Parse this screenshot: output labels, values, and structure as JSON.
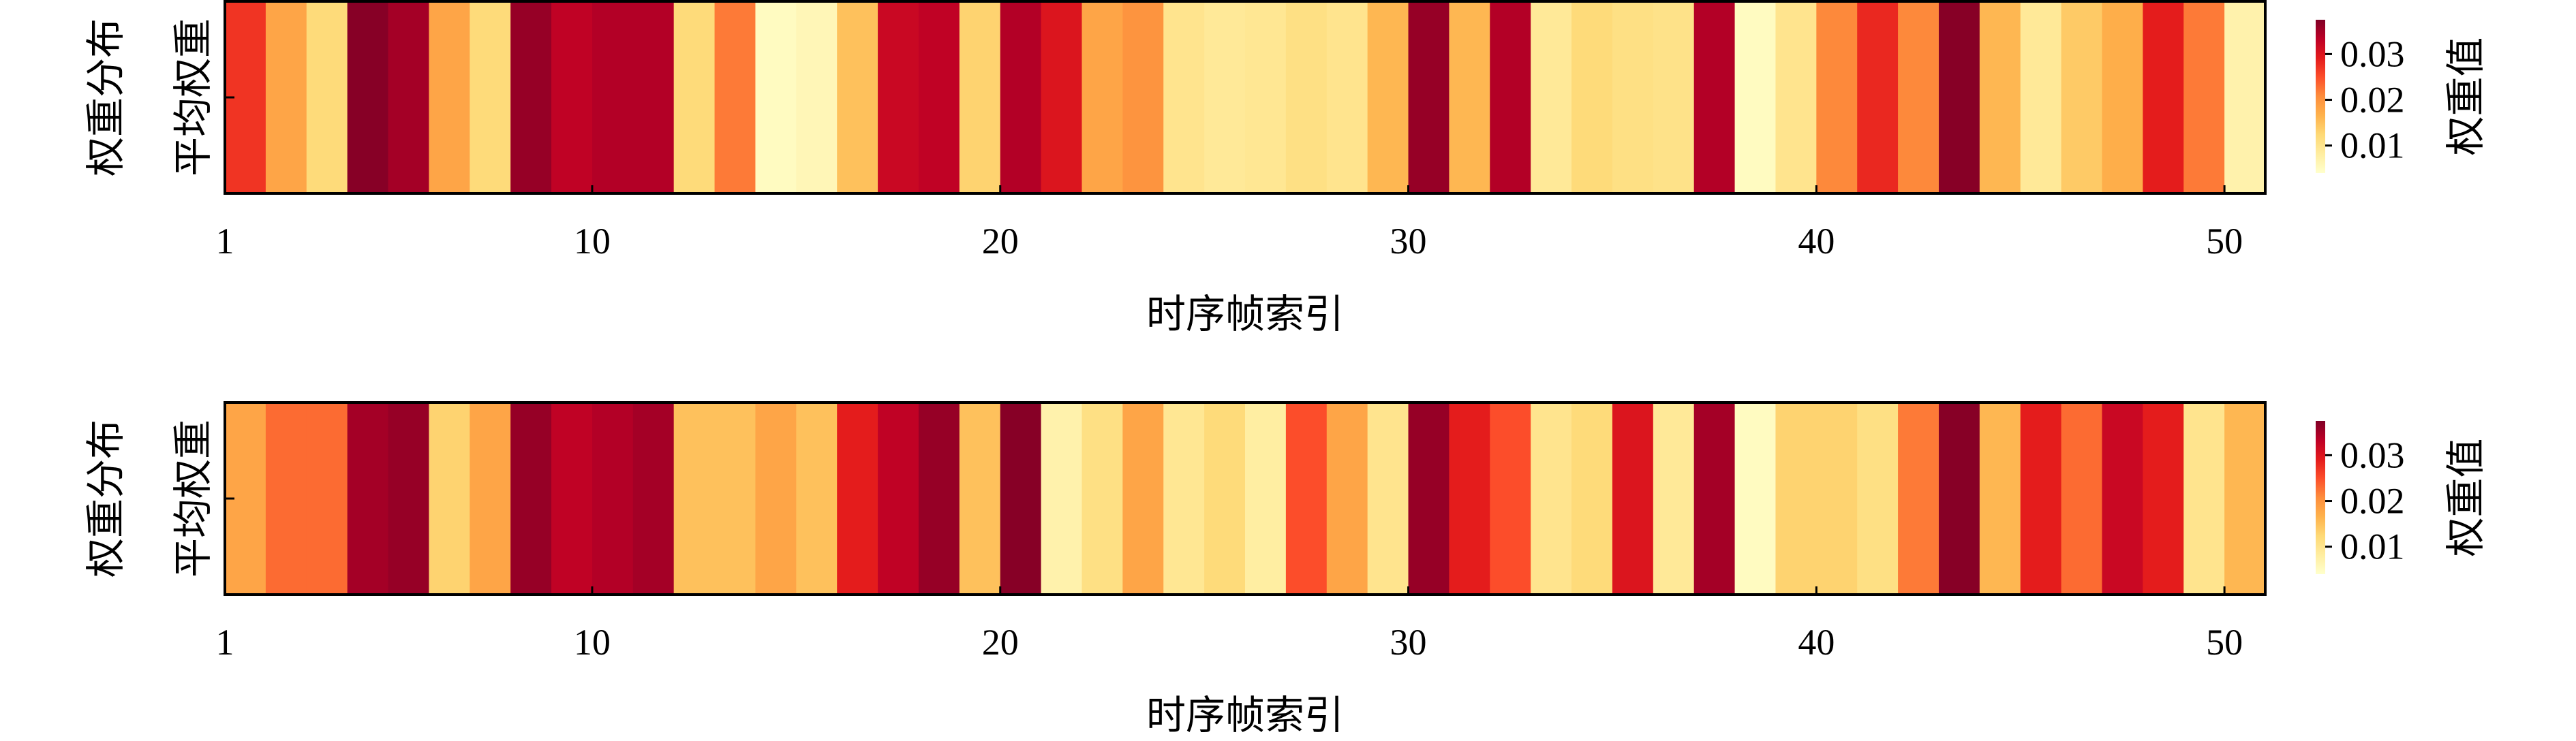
{
  "chart_data": [
    {
      "type": "heatmap",
      "x_label": "时序帧索引",
      "y_label": "权重分布",
      "y_categories": [
        "平均权重"
      ],
      "x": [
        1,
        2,
        3,
        4,
        5,
        6,
        7,
        8,
        9,
        10,
        11,
        12,
        13,
        14,
        15,
        16,
        17,
        18,
        19,
        20,
        21,
        22,
        23,
        24,
        25,
        26,
        27,
        28,
        29,
        30,
        31,
        32,
        33,
        34,
        35,
        36,
        37,
        38,
        39,
        40,
        41,
        42,
        43,
        44,
        45,
        46,
        47,
        48,
        49,
        50
      ],
      "values": [
        0.027,
        0.018,
        0.012,
        0.037,
        0.035,
        0.018,
        0.012,
        0.036,
        0.033,
        0.034,
        0.034,
        0.012,
        0.022,
        0.005,
        0.006,
        0.015,
        0.032,
        0.033,
        0.013,
        0.034,
        0.03,
        0.018,
        0.02,
        0.01,
        0.009,
        0.0095,
        0.011,
        0.01,
        0.016,
        0.036,
        0.016,
        0.034,
        0.009,
        0.012,
        0.011,
        0.0105,
        0.034,
        0.005,
        0.01,
        0.021,
        0.028,
        0.021,
        0.037,
        0.016,
        0.009,
        0.014,
        0.017,
        0.029,
        0.022,
        0.007
      ],
      "xlim": [
        1,
        51
      ],
      "xticks": [
        1,
        10,
        20,
        30,
        40,
        50
      ],
      "colorscale": [
        "#ffffcc",
        "#ffeda0",
        "#fed976",
        "#feb24c",
        "#fd8d3c",
        "#fc4e2a",
        "#e31a1c",
        "#bd0026",
        "#800026"
      ],
      "clim": [
        0.004,
        0.0375
      ],
      "cticks": [
        0.01,
        0.02,
        0.03
      ],
      "colorbar_label": "权重值"
    },
    {
      "type": "heatmap",
      "x_label": "时序帧索引",
      "y_label": "权重分布",
      "y_categories": [
        "平均权重"
      ],
      "x": [
        1,
        2,
        3,
        4,
        5,
        6,
        7,
        8,
        9,
        10,
        11,
        12,
        13,
        14,
        15,
        16,
        17,
        18,
        19,
        20,
        21,
        22,
        23,
        24,
        25,
        26,
        27,
        28,
        29,
        30,
        31,
        32,
        33,
        34,
        35,
        36,
        37,
        38,
        39,
        40,
        41,
        42,
        43,
        44,
        45,
        46,
        47,
        48,
        49,
        50
      ],
      "values": [
        0.018,
        0.023,
        0.023,
        0.035,
        0.036,
        0.013,
        0.018,
        0.036,
        0.033,
        0.034,
        0.035,
        0.015,
        0.015,
        0.018,
        0.015,
        0.029,
        0.033,
        0.036,
        0.015,
        0.037,
        0.007,
        0.011,
        0.018,
        0.0095,
        0.012,
        0.008,
        0.025,
        0.018,
        0.01,
        0.036,
        0.029,
        0.025,
        0.01,
        0.012,
        0.03,
        0.009,
        0.035,
        0.005,
        0.013,
        0.013,
        0.011,
        0.022,
        0.037,
        0.016,
        0.029,
        0.023,
        0.032,
        0.029,
        0.01,
        0.016
      ],
      "xlim": [
        1,
        51
      ],
      "xticks": [
        1,
        10,
        20,
        30,
        40,
        50
      ],
      "colorscale": [
        "#ffffcc",
        "#ffeda0",
        "#fed976",
        "#feb24c",
        "#fd8d3c",
        "#fc4e2a",
        "#e31a1c",
        "#bd0026",
        "#800026"
      ],
      "clim": [
        0.004,
        0.0375
      ],
      "cticks": [
        0.01,
        0.02,
        0.03
      ],
      "colorbar_label": "权重值"
    }
  ]
}
